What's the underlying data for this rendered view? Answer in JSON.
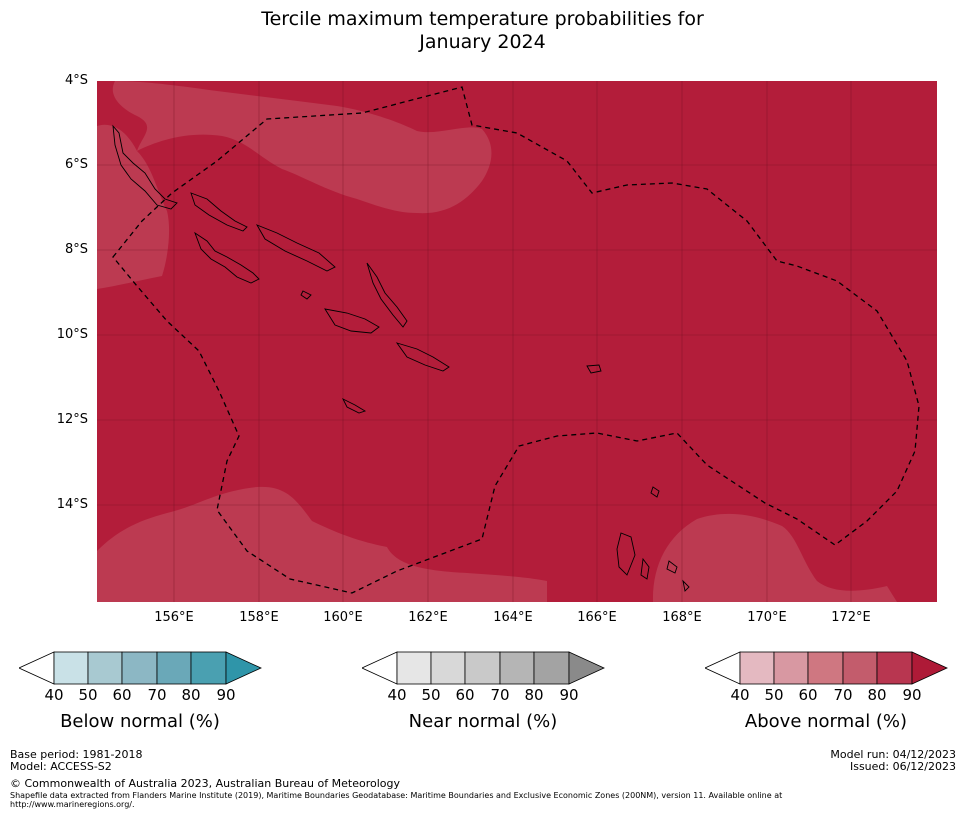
{
  "title_line1": "Tercile maximum temperature probabilities for",
  "title_line2": "January 2024",
  "map": {
    "lat_labels": [
      "4°S",
      "6°S",
      "8°S",
      "10°S",
      "12°S",
      "14°S"
    ],
    "lon_labels": [
      "156°E",
      "158°E",
      "160°E",
      "162°E",
      "164°E",
      "166°E",
      "168°E",
      "170°E",
      "172°E"
    ],
    "colors": {
      "above_80_90": "#b31d3a",
      "above_70_80": "#bc3a51",
      "coast": "#000000",
      "eez_boundary": "#000000"
    },
    "dominant_category": "Above normal",
    "dominant_band": "80-90",
    "secondary_band": "70-80"
  },
  "legends": [
    {
      "title": "Below normal (%)",
      "ticks": [
        "40",
        "50",
        "60",
        "70",
        "80",
        "90"
      ],
      "colors": [
        "#ffffff",
        "#c9e1e7",
        "#a8c9d1",
        "#8cb7c4",
        "#6aa8b8",
        "#4aa0b1",
        "#2f95a9"
      ]
    },
    {
      "title": "Near normal (%)",
      "ticks": [
        "40",
        "50",
        "60",
        "70",
        "80",
        "90"
      ],
      "colors": [
        "#ffffff",
        "#e6e6e6",
        "#d8d8d8",
        "#c9c9c9",
        "#b5b5b5",
        "#a3a3a3",
        "#8a8a8a"
      ]
    },
    {
      "title": "Above normal (%)",
      "ticks": [
        "40",
        "50",
        "60",
        "70",
        "80",
        "90"
      ],
      "colors": [
        "#ffffff",
        "#e4b9c1",
        "#d898a2",
        "#cf7781",
        "#c35c6c",
        "#b83650",
        "#ae1a37"
      ]
    }
  ],
  "footer": {
    "base_period": "Base period: 1981-2018",
    "model": "Model: ACCESS-S2",
    "copyright": "© Commonwealth of Australia 2023, Australian Bureau of Meteorology",
    "shapefile_line1": "Shapefile data extracted from Flanders Marine Institute (2019), Maritime Boundaries Geodatabase: Maritime Boundaries and Exclusive Economic Zones (200NM), version 11. Available online at",
    "shapefile_line2": "http://www.marineregions.org/.",
    "model_run": "Model run: 04/12/2023",
    "issued": "Issued: 06/12/2023"
  }
}
